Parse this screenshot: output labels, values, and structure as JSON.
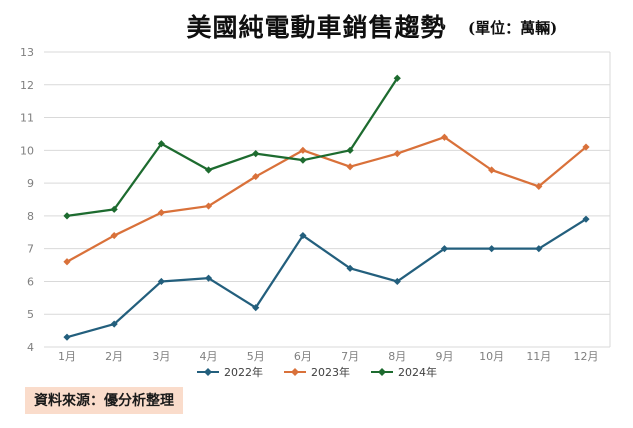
{
  "header": {
    "title": "美國純電動車銷售趨勢",
    "unit_label": "(單位：萬輛)"
  },
  "chart_data": {
    "type": "line",
    "title": "美國純電動車銷售趨勢",
    "subtitle": "(單位：萬輛)",
    "categories": [
      "1月",
      "2月",
      "3月",
      "4月",
      "5月",
      "6月",
      "7月",
      "8月",
      "9月",
      "10月",
      "11月",
      "12月"
    ],
    "series": [
      {
        "name": "2022年",
        "color": "#235f7d",
        "values": [
          4.3,
          4.7,
          6.0,
          6.1,
          5.2,
          7.4,
          6.4,
          6.0,
          7.0,
          7.0,
          7.0,
          7.9
        ]
      },
      {
        "name": "2023年",
        "color": "#d9713a",
        "values": [
          6.6,
          7.4,
          8.1,
          8.3,
          9.2,
          10.0,
          9.5,
          9.9,
          10.4,
          9.4,
          8.9,
          10.1
        ]
      },
      {
        "name": "2024年",
        "color": "#1d6b2f",
        "values": [
          8.0,
          8.2,
          10.2,
          9.4,
          9.9,
          9.7,
          10.0,
          12.2,
          null,
          null,
          null,
          null
        ]
      }
    ],
    "xlabel": "",
    "ylabel": "",
    "ylim": [
      4,
      13
    ],
    "ytick_step": 1,
    "yticks": [
      4,
      5,
      6,
      7,
      8,
      9,
      10,
      11,
      12,
      13
    ],
    "grid": true,
    "gridline_color": "#d9d9d9",
    "axis_label_color": "#7f7f7f",
    "legend_position": "bottom"
  },
  "footer": {
    "source_label": "資料來源：優分析整理",
    "source_bg_color": "#fadccb"
  }
}
